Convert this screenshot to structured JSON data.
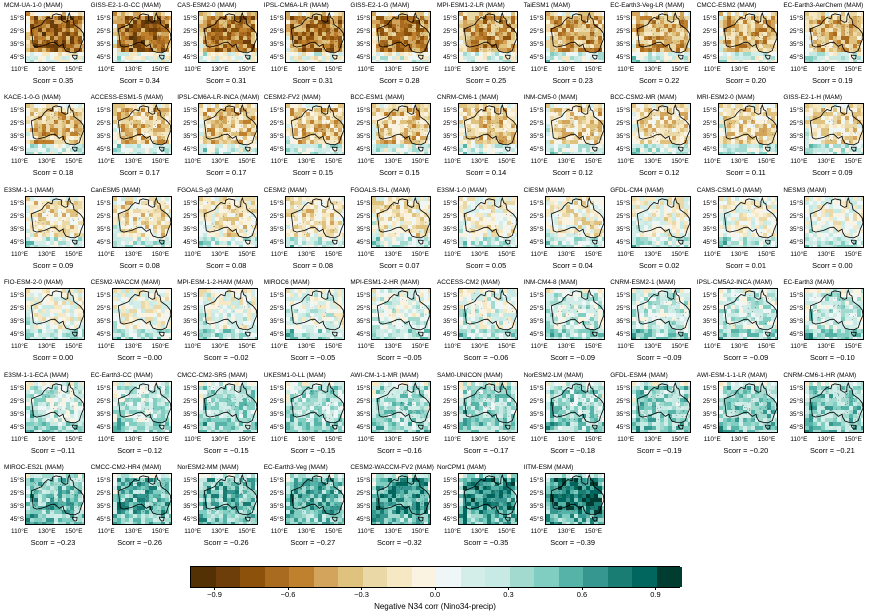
{
  "chart_data": {
    "type": "heatmap",
    "season": "MAM",
    "x_tick_labels": [
      "110°E",
      "130°E",
      "150°E"
    ],
    "y_tick_labels": [
      "15°S",
      "25°S",
      "35°S",
      "45°S"
    ],
    "colorbar": {
      "label": "Negative N34 corr (Nino34-precip)",
      "range": [
        -1.0,
        1.0
      ],
      "tick_labels": [
        "−0.9",
        "−0.6",
        "−0.3",
        "0.0",
        "0.3",
        "0.6",
        "0.9"
      ],
      "tick_values": [
        -0.9,
        -0.6,
        -0.3,
        0.0,
        0.3,
        0.6,
        0.9
      ],
      "levels": 20,
      "colors": [
        "#543005",
        "#6e3e0a",
        "#8c510a",
        "#a86b1f",
        "#bf812d",
        "#d3a55c",
        "#dfc27d",
        "#ead8a6",
        "#f6e8c3",
        "#faf3e2",
        "#eef7f5",
        "#d3ede8",
        "#c7eae5",
        "#a2dad0",
        "#80cdc1",
        "#56b3a8",
        "#35978f",
        "#1a7d73",
        "#01665e",
        "#003c30"
      ]
    },
    "models": [
      {
        "name": "MCM-UA-1-0 (MAM)",
        "scorr": "Scorr = 0.35",
        "value": 0.35
      },
      {
        "name": "GISS-E2-1-G-CC (MAM)",
        "scorr": "Scorr = 0.34",
        "value": 0.34
      },
      {
        "name": "CAS-ESM2-0 (MAM)",
        "scorr": "Scorr = 0.31",
        "value": 0.31
      },
      {
        "name": "IPSL-CM6A-LR (MAM)",
        "scorr": "Scorr = 0.31",
        "value": 0.31
      },
      {
        "name": "GISS-E2-1-G (MAM)",
        "scorr": "Scorr = 0.28",
        "value": 0.28
      },
      {
        "name": "MPI-ESM1-2-LR (MAM)",
        "scorr": "Scorr = 0.25",
        "value": 0.25
      },
      {
        "name": "TaiESM1 (MAM)",
        "scorr": "Scorr = 0.23",
        "value": 0.23
      },
      {
        "name": "EC-Earth3-Veg-LR (MAM)",
        "scorr": "Scorr = 0.22",
        "value": 0.22
      },
      {
        "name": "CMCC-ESM2 (MAM)",
        "scorr": "Scorr = 0.20",
        "value": 0.2
      },
      {
        "name": "EC-Earth3-AerChem (MAM)",
        "scorr": "Scorr = 0.19",
        "value": 0.19
      },
      {
        "name": "KACE-1-0-G (MAM)",
        "scorr": "Scorr = 0.18",
        "value": 0.18
      },
      {
        "name": "ACCESS-ESM1-5 (MAM)",
        "scorr": "Scorr = 0.17",
        "value": 0.17
      },
      {
        "name": "IPSL-CM6A-LR-INCA (MAM)",
        "scorr": "Scorr = 0.17",
        "value": 0.17
      },
      {
        "name": "CESM2-FV2 (MAM)",
        "scorr": "Scorr = 0.15",
        "value": 0.15
      },
      {
        "name": "BCC-ESM1 (MAM)",
        "scorr": "Scorr = 0.15",
        "value": 0.15
      },
      {
        "name": "CNRM-CM6-1 (MAM)",
        "scorr": "Scorr = 0.14",
        "value": 0.14
      },
      {
        "name": "INM-CM5-0 (MAM)",
        "scorr": "Scorr = 0.12",
        "value": 0.12
      },
      {
        "name": "BCC-CSM2-MR (MAM)",
        "scorr": "Scorr = 0.12",
        "value": 0.12
      },
      {
        "name": "MRI-ESM2-0 (MAM)",
        "scorr": "Scorr = 0.11",
        "value": 0.11
      },
      {
        "name": "GISS-E2-1-H (MAM)",
        "scorr": "Scorr = 0.09",
        "value": 0.09
      },
      {
        "name": "E3SM-1-1 (MAM)",
        "scorr": "Scorr = 0.09",
        "value": 0.09
      },
      {
        "name": "CanESM5 (MAM)",
        "scorr": "Scorr = 0.08",
        "value": 0.08
      },
      {
        "name": "FGOALS-g3 (MAM)",
        "scorr": "Scorr = 0.08",
        "value": 0.08
      },
      {
        "name": "CESM2 (MAM)",
        "scorr": "Scorr = 0.08",
        "value": 0.08
      },
      {
        "name": "FGOALS-f3-L (MAM)",
        "scorr": "Scorr = 0.07",
        "value": 0.07
      },
      {
        "name": "E3SM-1-0 (MAM)",
        "scorr": "Scorr = 0.05",
        "value": 0.05
      },
      {
        "name": "CIESM (MAM)",
        "scorr": "Scorr = 0.04",
        "value": 0.04
      },
      {
        "name": "GFDL-CM4 (MAM)",
        "scorr": "Scorr = 0.02",
        "value": 0.02
      },
      {
        "name": "CAMS-CSM1-0 (MAM)",
        "scorr": "Scorr = 0.01",
        "value": 0.01
      },
      {
        "name": "NESM3 (MAM)",
        "scorr": "Scorr = 0.00",
        "value": 0.0
      },
      {
        "name": "FIO-ESM-2-0 (MAM)",
        "scorr": "Scorr = 0.00",
        "value": 0.0
      },
      {
        "name": "CESM2-WACCM (MAM)",
        "scorr": "Scorr = −0.00",
        "value": -0.0
      },
      {
        "name": "MPI-ESM-1-2-HAM (MAM)",
        "scorr": "Scorr = −0.02",
        "value": -0.02
      },
      {
        "name": "MIROC6 (MAM)",
        "scorr": "Scorr = −0.05",
        "value": -0.05
      },
      {
        "name": "MPI-ESM1-2-HR (MAM)",
        "scorr": "Scorr = −0.05",
        "value": -0.05
      },
      {
        "name": "ACCESS-CM2 (MAM)",
        "scorr": "Scorr = −0.06",
        "value": -0.06
      },
      {
        "name": "INM-CM4-8 (MAM)",
        "scorr": "Scorr = −0.09",
        "value": -0.09
      },
      {
        "name": "CNRM-ESM2-1 (MAM)",
        "scorr": "Scorr = −0.09",
        "value": -0.09
      },
      {
        "name": "IPSL-CM5A2-INCA (MAM)",
        "scorr": "Scorr = −0.09",
        "value": -0.09
      },
      {
        "name": "EC-Earth3 (MAM)",
        "scorr": "Scorr = −0.10",
        "value": -0.1
      },
      {
        "name": "E3SM-1-1-ECA (MAM)",
        "scorr": "Scorr = −0.11",
        "value": -0.11
      },
      {
        "name": "EC-Earth3-CC (MAM)",
        "scorr": "Scorr = −0.12",
        "value": -0.12
      },
      {
        "name": "CMCC-CM2-SR5 (MAM)",
        "scorr": "Scorr = −0.15",
        "value": -0.15
      },
      {
        "name": "UKESM1-0-LL (MAM)",
        "scorr": "Scorr = −0.15",
        "value": -0.15
      },
      {
        "name": "AWI-CM-1-1-MR (MAM)",
        "scorr": "Scorr = −0.16",
        "value": -0.16
      },
      {
        "name": "SAM0-UNICON (MAM)",
        "scorr": "Scorr = −0.17",
        "value": -0.17
      },
      {
        "name": "NorESM2-LM (MAM)",
        "scorr": "Scorr = −0.18",
        "value": -0.18
      },
      {
        "name": "GFDL-ESM4 (MAM)",
        "scorr": "Scorr = −0.19",
        "value": -0.19
      },
      {
        "name": "AWI-ESM-1-1-LR (MAM)",
        "scorr": "Scorr = −0.20",
        "value": -0.2
      },
      {
        "name": "CNRM-CM6-1-HR (MAM)",
        "scorr": "Scorr = −0.21",
        "value": -0.21
      },
      {
        "name": "MIROC-ES2L (MAM)",
        "scorr": "Scorr = −0.23",
        "value": -0.23
      },
      {
        "name": "CMCC-CM2-HR4 (MAM)",
        "scorr": "Scorr = −0.26",
        "value": -0.26
      },
      {
        "name": "NorESM2-MM (MAM)",
        "scorr": "Scorr = −0.26",
        "value": -0.26
      },
      {
        "name": "EC-Earth3-Veg (MAM)",
        "scorr": "Scorr = −0.27",
        "value": -0.27
      },
      {
        "name": "CESM2-WACCM-FV2 (MAM)",
        "scorr": "Scorr = −0.32",
        "value": -0.32
      },
      {
        "name": "NorCPM1 (MAM)",
        "scorr": "Scorr = −0.35",
        "value": -0.35
      },
      {
        "name": "IITM-ESM (MAM)",
        "scorr": "Scorr = −0.39",
        "value": -0.39
      }
    ]
  }
}
